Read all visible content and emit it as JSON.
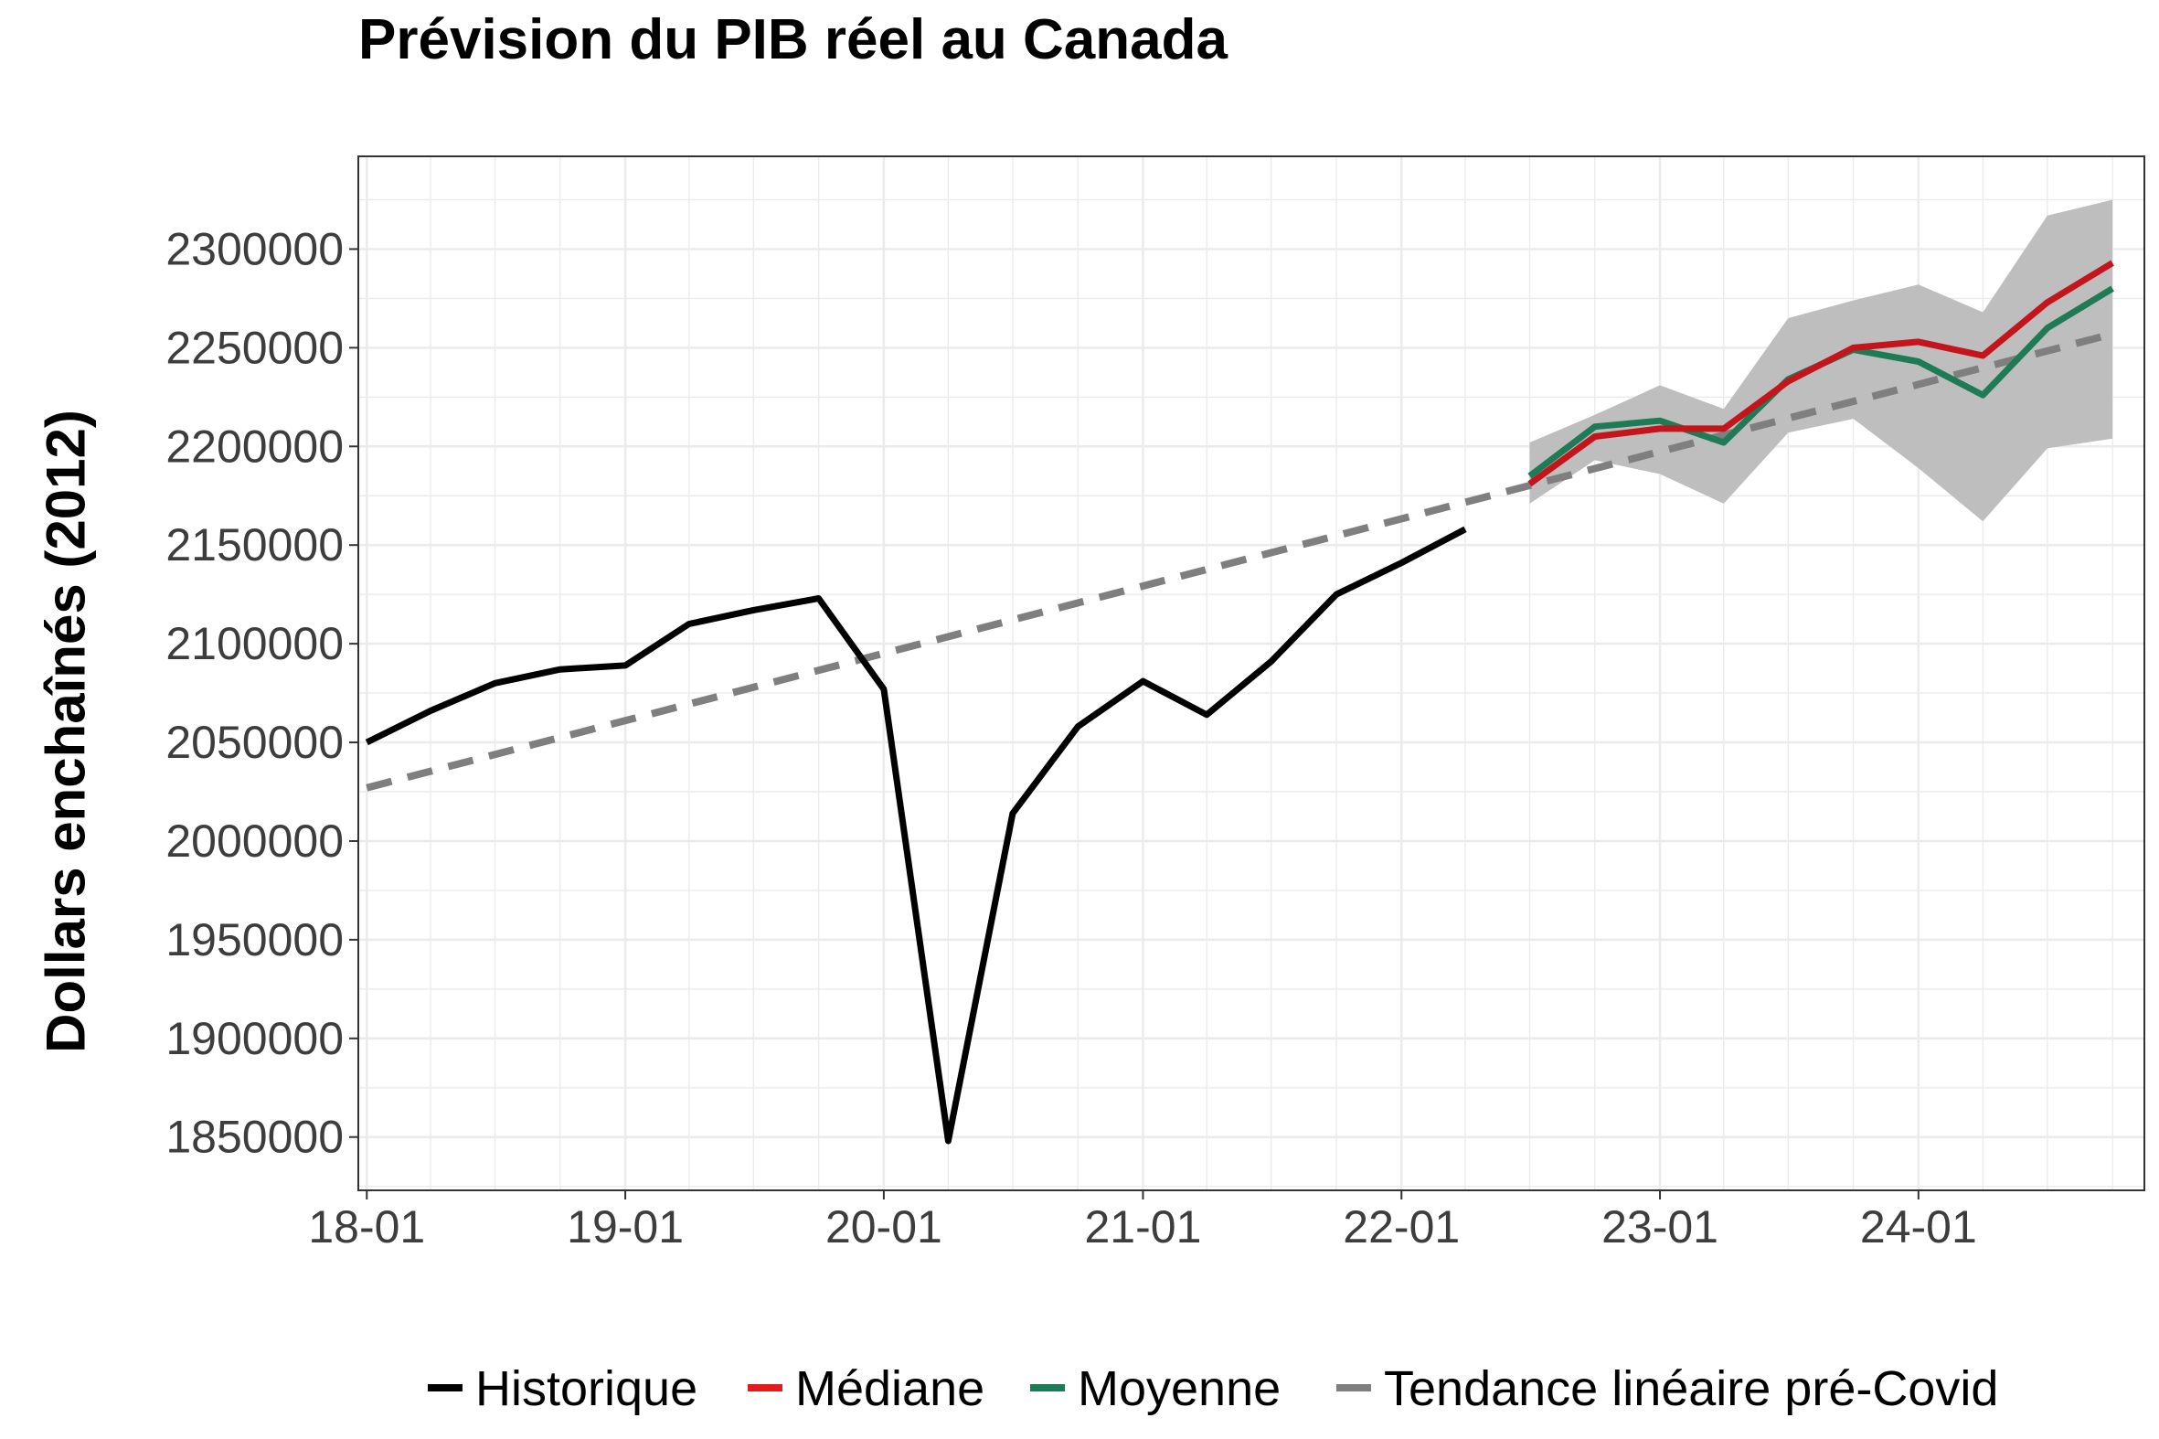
{
  "chart_data": {
    "type": "line",
    "title": "Prévision du PIB réel au Canada",
    "ylabel": "Dollars enchaînés (2012)",
    "xlabel": "",
    "xlim": [
      "2017-12-20",
      "2024-11-15"
    ],
    "ylim": [
      1823000,
      2347000
    ],
    "x_ticks": [
      "18-01",
      "19-01",
      "20-01",
      "21-01",
      "22-01",
      "23-01",
      "24-01"
    ],
    "y_ticks": [
      "1850000",
      "1900000",
      "1950000",
      "2000000",
      "2050000",
      "2100000",
      "2150000",
      "2200000",
      "2250000",
      "2300000"
    ],
    "grid": true,
    "legend_position": "bottom",
    "series": [
      {
        "name": "Historique",
        "color": "#000000",
        "dash": "solid",
        "x": [
          "2018-01",
          "2018-04",
          "2018-07",
          "2018-10",
          "2019-01",
          "2019-04",
          "2019-07",
          "2019-10",
          "2020-01",
          "2020-04",
          "2020-07",
          "2020-10",
          "2021-01",
          "2021-04",
          "2021-07",
          "2021-10",
          "2022-01",
          "2022-04"
        ],
        "values": [
          2050000,
          2066000,
          2080000,
          2087000,
          2089000,
          2110000,
          2117000,
          2123000,
          2077000,
          1848000,
          2014000,
          2058000,
          2081000,
          2064000,
          2091000,
          2125000,
          2141000,
          2158000
        ]
      },
      {
        "name": "Médiane",
        "color": "#c4141c",
        "dash": "solid",
        "x": [
          "2022-07",
          "2022-10",
          "2023-01",
          "2023-04",
          "2023-07",
          "2023-10",
          "2024-01",
          "2024-04",
          "2024-07",
          "2024-10"
        ],
        "values": [
          2181000,
          2205000,
          2209000,
          2209000,
          2233000,
          2250000,
          2253000,
          2246000,
          2273000,
          2293000
        ]
      },
      {
        "name": "Moyenne",
        "color": "#1e7b55",
        "dash": "solid",
        "x": [
          "2022-07",
          "2022-10",
          "2023-01",
          "2023-04",
          "2023-07",
          "2023-10",
          "2024-01",
          "2024-04",
          "2024-07",
          "2024-10"
        ],
        "values": [
          2185000,
          2210000,
          2213000,
          2202000,
          2234000,
          2249000,
          2243000,
          2226000,
          2260000,
          2280000
        ]
      },
      {
        "name": "Tendance linéaire pré-Covid",
        "color": "#7f7f7f",
        "dash": "dashed",
        "x": [
          "2018-01",
          "2024-10"
        ],
        "values": [
          2027000,
          2257000
        ]
      }
    ],
    "band": {
      "color": "#bebebe",
      "x": [
        "2022-07",
        "2022-10",
        "2023-01",
        "2023-04",
        "2023-07",
        "2023-10",
        "2024-01",
        "2024-04",
        "2024-07",
        "2024-10"
      ],
      "lower": [
        2171000,
        2193000,
        2186000,
        2171000,
        2207000,
        2214000,
        2189000,
        2162000,
        2199000,
        2204000
      ],
      "upper": [
        2202000,
        2216000,
        2231000,
        2219000,
        2265000,
        2274000,
        2282000,
        2268000,
        2317000,
        2325000
      ]
    },
    "legend": [
      "Historique",
      "Médiane",
      "Moyenne",
      "Tendance linéaire pré-Covid"
    ],
    "legend_colors": [
      "#000000",
      "#e41a1c",
      "#1e7b55",
      "#7f7f7f"
    ]
  }
}
